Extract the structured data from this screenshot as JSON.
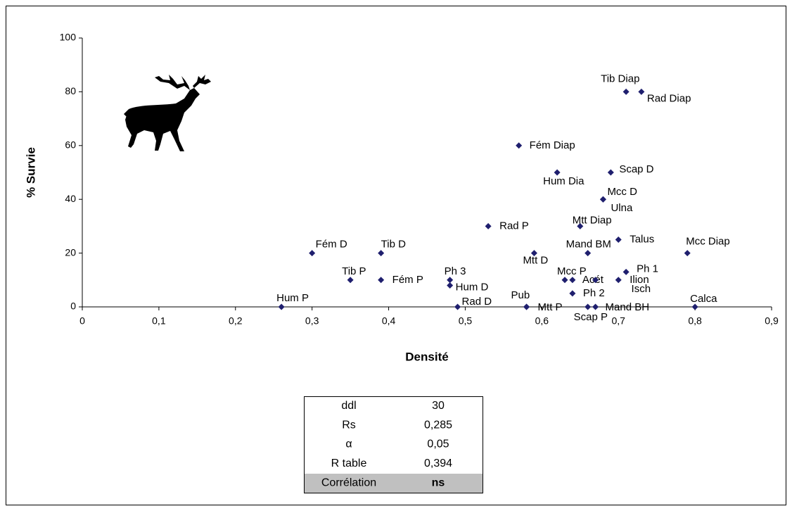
{
  "chart_data": {
    "type": "scatter",
    "xlabel": "Densité",
    "ylabel": "% Survie",
    "xlim": [
      0,
      0.9
    ],
    "ylim": [
      0,
      100
    ],
    "xticks": [
      0,
      {
        "value": 0.1,
        "label": "0,1"
      },
      {
        "value": 0.2,
        "label": "0,2"
      },
      {
        "value": 0.3,
        "label": "0,3"
      },
      {
        "value": 0.4,
        "label": "0,4"
      },
      {
        "value": 0.5,
        "label": "0,5"
      },
      {
        "value": 0.6,
        "label": "0,6"
      },
      {
        "value": 0.7,
        "label": "0,7"
      },
      {
        "value": 0.8,
        "label": "0,8"
      },
      {
        "value": 0.9,
        "label": "0,9"
      }
    ],
    "yticks": [
      0,
      20,
      40,
      60,
      80,
      100
    ],
    "series": [
      {
        "color": "#1f1f6e",
        "point_labels": [
          "Hum P",
          "Fém D",
          "Tib P",
          "Tib D",
          "Fém P",
          "Ph 3",
          "Hum D",
          "Rad D",
          "Rad P",
          "Fém Diap",
          "Pub",
          "Mtt P",
          "Mtt D",
          "Hum Dia",
          "Mtt Diap",
          "Mcc P",
          "Acét",
          "Ph 2",
          "Isch",
          "Ilion",
          "Mand BM",
          "Scap P",
          "Mand BH",
          "Mcc D",
          "Ulna",
          "Scap D",
          "Talus",
          "Ph 1",
          "Tib Diap",
          "Rad Diap",
          "Mcc Diap",
          "Calca"
        ],
        "x": [
          0.26,
          0.3,
          0.35,
          0.39,
          0.39,
          0.48,
          0.48,
          0.49,
          0.53,
          0.57,
          0.58,
          0.58,
          0.59,
          0.62,
          0.65,
          0.63,
          0.64,
          0.64,
          0.67,
          0.7,
          0.66,
          0.66,
          0.67,
          0.68,
          0.68,
          0.69,
          0.7,
          0.71,
          0.71,
          0.73,
          0.79,
          0.8
        ],
        "values": [
          0,
          20,
          10,
          20,
          10,
          10,
          8,
          0,
          30,
          60,
          0,
          0,
          20,
          50,
          30,
          10,
          10,
          5,
          10,
          10,
          20,
          0,
          0,
          40,
          40,
          50,
          25,
          13,
          80,
          80,
          20,
          0
        ]
      }
    ]
  },
  "table": {
    "rows": [
      [
        "ddl",
        "30"
      ],
      [
        "Rs",
        "0,285"
      ],
      [
        "α",
        "0,05"
      ],
      [
        "R table",
        "0,394"
      ],
      [
        "Corrélation",
        "ns"
      ]
    ]
  }
}
